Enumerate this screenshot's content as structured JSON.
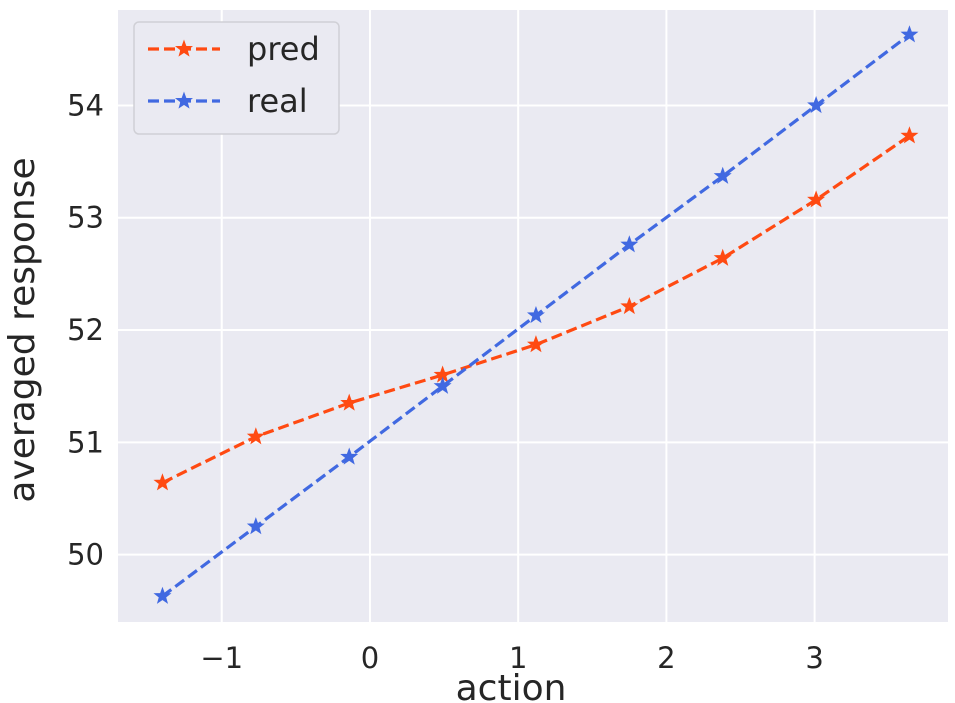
{
  "chart_data": {
    "type": "line",
    "title": "",
    "xlabel": "action",
    "ylabel": "averaged response",
    "xlim": [
      -1.7,
      3.9
    ],
    "ylim": [
      49.4,
      54.85
    ],
    "xticks": [
      -1,
      0,
      1,
      2,
      3
    ],
    "xtick_labels": [
      "−1",
      "0",
      "1",
      "2",
      "3"
    ],
    "yticks": [
      50,
      51,
      52,
      53,
      54
    ],
    "ytick_labels": [
      "50",
      "51",
      "52",
      "53",
      "54"
    ],
    "grid": true,
    "legend_position": "top-left",
    "x": [
      -1.4,
      -0.77,
      -0.14,
      0.49,
      1.12,
      1.75,
      2.38,
      3.01,
      3.64
    ],
    "series": [
      {
        "name": "pred",
        "color": "#ff4a12",
        "marker": "star",
        "linestyle": "dashed",
        "values": [
          50.64,
          51.05,
          51.35,
          51.6,
          51.87,
          52.21,
          52.64,
          53.16,
          53.73
        ]
      },
      {
        "name": "real",
        "color": "#4169e1",
        "marker": "star",
        "linestyle": "dashed",
        "values": [
          49.63,
          50.25,
          50.87,
          51.5,
          52.13,
          52.76,
          53.37,
          54.0,
          54.63
        ]
      }
    ]
  }
}
